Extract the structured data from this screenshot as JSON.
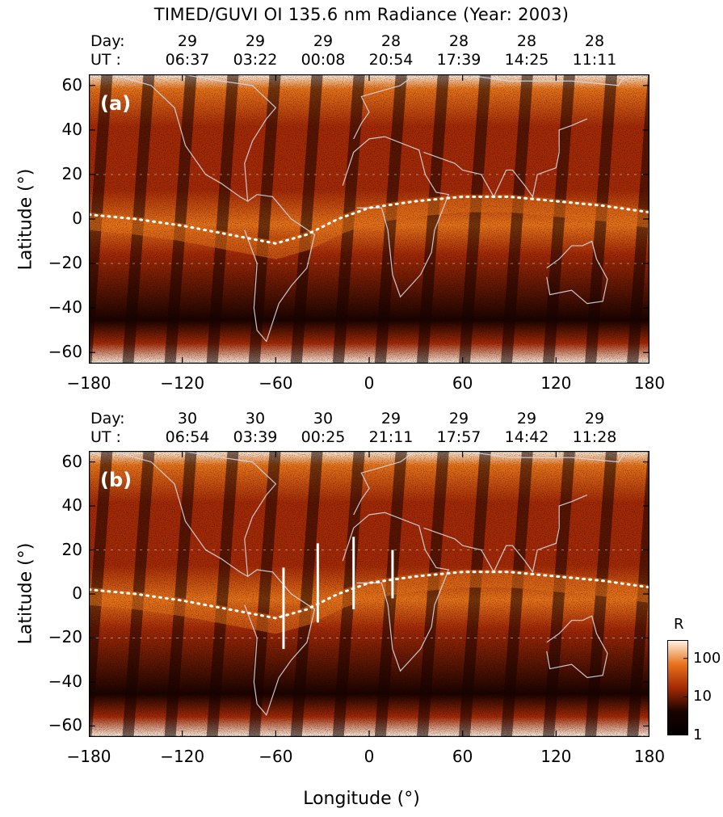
{
  "title": "TIMED/GUVI OI 135.6 nm Radiance (Year: 2003)",
  "colors": {
    "dark": "#1a0300",
    "mid": "#a52a06",
    "orange": "#e8731a",
    "bright": "#fff4e6",
    "coast": "#d8d8e8"
  },
  "chart_data": [
    {
      "type": "heatmap",
      "panel_label": "(a)",
      "day_row_label": "Day:",
      "ut_row_label": "UT :",
      "orbit_days": [
        "29",
        "29",
        "29",
        "28",
        "28",
        "28",
        "28"
      ],
      "orbit_times": [
        "06:37",
        "03:22",
        "00:08",
        "20:54",
        "17:39",
        "14:25",
        "11:11"
      ],
      "xlim": [
        -180,
        180
      ],
      "ylim": [
        -65,
        65
      ],
      "xticks": [
        -180,
        -120,
        -60,
        0,
        60,
        120,
        180
      ],
      "xtick_labels": [
        "−180",
        "−120",
        "−60",
        "0",
        "60",
        "120",
        "180"
      ],
      "yticks": [
        -60,
        -40,
        -20,
        0,
        20,
        40,
        60
      ],
      "ytick_labels": [
        "−60",
        "−40",
        "−20",
        "0",
        "20",
        "40",
        "60"
      ],
      "ylabel": "Latitude (°)",
      "xlabel": "",
      "magnetic_equator": [
        [
          -180,
          2
        ],
        [
          -150,
          0
        ],
        [
          -120,
          -3
        ],
        [
          -90,
          -7
        ],
        [
          -60,
          -11
        ],
        [
          -40,
          -7
        ],
        [
          -20,
          0
        ],
        [
          0,
          5
        ],
        [
          30,
          8
        ],
        [
          60,
          10
        ],
        [
          90,
          10
        ],
        [
          120,
          8
        ],
        [
          150,
          6
        ],
        [
          180,
          3
        ]
      ],
      "ionization_crest_markers": []
    },
    {
      "type": "heatmap",
      "panel_label": "(b)",
      "day_row_label": "Day:",
      "ut_row_label": "UT :",
      "orbit_days": [
        "30",
        "30",
        "30",
        "29",
        "29",
        "29",
        "29"
      ],
      "orbit_times": [
        "06:54",
        "03:39",
        "00:25",
        "21:11",
        "17:57",
        "14:42",
        "11:28"
      ],
      "xlim": [
        -180,
        180
      ],
      "ylim": [
        -65,
        65
      ],
      "xticks": [
        -180,
        -120,
        -60,
        0,
        60,
        120,
        180
      ],
      "xtick_labels": [
        "−180",
        "−120",
        "−60",
        "0",
        "60",
        "120",
        "180"
      ],
      "yticks": [
        -60,
        -40,
        -20,
        0,
        20,
        40,
        60
      ],
      "ytick_labels": [
        "−60",
        "−40",
        "−20",
        "0",
        "20",
        "40",
        "60"
      ],
      "ylabel": "Latitude (°)",
      "xlabel": "Longitude (°)",
      "magnetic_equator": [
        [
          -180,
          2
        ],
        [
          -150,
          0
        ],
        [
          -120,
          -3
        ],
        [
          -90,
          -7
        ],
        [
          -60,
          -11
        ],
        [
          -40,
          -7
        ],
        [
          -20,
          0
        ],
        [
          0,
          5
        ],
        [
          30,
          8
        ],
        [
          60,
          10
        ],
        [
          90,
          10
        ],
        [
          120,
          8
        ],
        [
          150,
          6
        ],
        [
          180,
          3
        ]
      ],
      "ionization_crest_markers": [
        {
          "lon": -55,
          "lat_min": -25,
          "lat_max": 12
        },
        {
          "lon": -33,
          "lat_min": -13,
          "lat_max": 23
        },
        {
          "lon": -10,
          "lat_min": -7,
          "lat_max": 26
        },
        {
          "lon": 15,
          "lat_min": -2,
          "lat_max": 20
        }
      ]
    }
  ],
  "colorbar": {
    "unit_label": "R",
    "scale": "log",
    "range": [
      1,
      300
    ],
    "tick_values": [
      1,
      10,
      100
    ],
    "tick_labels": [
      "1",
      "10",
      "100"
    ]
  }
}
